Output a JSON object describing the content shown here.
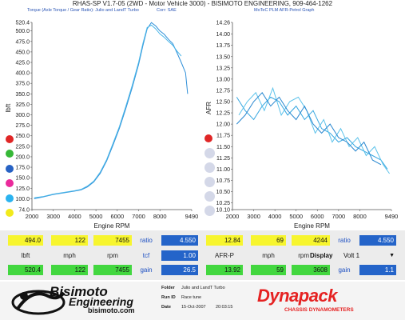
{
  "header": {
    "title": "RHAS-SP V1.7-05   (2WD - Motor Vehicle 3000) - BISIMOTO ENGINEERING, 909-464-1262"
  },
  "left_chart": {
    "title": "Torque (Axle Torque / Gear Ratio): Julio and LandT Turbo",
    "corr": "Corr: SAE"
  },
  "right_chart": {
    "title": "MoTeC PLM AFR-Petrol Graph"
  },
  "chart_data": [
    {
      "type": "line",
      "title": "Torque (Axle Torque / Gear Ratio): Julio and LandT Turbo",
      "xlabel": "Engine RPM",
      "ylabel": "lbft",
      "xlim": [
        2000,
        9490
      ],
      "ylim": [
        74.0,
        520.4
      ],
      "xticks": [
        "2000",
        "3000",
        "4000",
        "5000",
        "6000",
        "7000",
        "8000",
        "9490"
      ],
      "yticks": [
        "74.0",
        "100.0",
        "125.0",
        "150.0",
        "175.0",
        "200.0",
        "225.0",
        "250.0",
        "275.0",
        "300.0",
        "325.0",
        "350.0",
        "375.0",
        "400.0",
        "425.0",
        "450.0",
        "475.0",
        "500.0",
        "520.4"
      ],
      "series": [
        {
          "color": "#2f8fd8",
          "x": [
            2100,
            2500,
            3000,
            3500,
            4000,
            4300,
            4600,
            4900,
            5200,
            5500,
            5800,
            6100,
            6400,
            6700,
            7000,
            7200,
            7400,
            7600,
            7800,
            8000,
            8200,
            8400,
            8600,
            8800,
            9000,
            9200,
            9300
          ],
          "y": [
            100,
            104,
            110,
            114,
            118,
            121,
            128,
            140,
            160,
            190,
            228,
            268,
            315,
            365,
            420,
            465,
            505,
            520,
            512,
            500,
            492,
            480,
            470,
            448,
            425,
            400,
            350
          ]
        },
        {
          "color": "#48b6e8",
          "x": [
            2100,
            2500,
            3000,
            3500,
            4000,
            4300,
            4600,
            4900,
            5200,
            5500,
            5800,
            6100,
            6400,
            6700,
            7000,
            7200,
            7400,
            7600,
            7800,
            8000,
            8200,
            8400,
            8600,
            8800,
            9000
          ],
          "y": [
            102,
            105,
            111,
            115,
            119,
            122,
            130,
            142,
            163,
            193,
            232,
            272,
            320,
            370,
            425,
            470,
            508,
            514,
            505,
            493,
            485,
            475,
            466,
            452,
            440
          ]
        }
      ]
    },
    {
      "type": "line",
      "title": "MoTeC PLM AFR-Petrol Graph",
      "xlabel": "Engine RPM",
      "ylabel": "AFR",
      "xlim": [
        2000,
        9490
      ],
      "ylim": [
        10.1,
        14.26
      ],
      "xticks": [
        "2000",
        "3000",
        "4000",
        "5000",
        "6000",
        "7000",
        "8000",
        "9490"
      ],
      "yticks": [
        "10.10",
        "10.25",
        "10.50",
        "10.75",
        "11.00",
        "11.25",
        "11.50",
        "11.75",
        "12.00",
        "12.25",
        "12.50",
        "12.75",
        "13.00",
        "13.25",
        "13.50",
        "13.75",
        "14.00",
        "14.26"
      ],
      "series": [
        {
          "color": "#36a6e0",
          "x": [
            2200,
            2600,
            3000,
            3400,
            3800,
            4200,
            4600,
            5000,
            5400,
            5800,
            6200,
            6600,
            7000,
            7400,
            7800,
            8200,
            8600,
            9000,
            9300
          ],
          "y": [
            12.6,
            12.3,
            12.1,
            12.4,
            12.6,
            12.5,
            12.2,
            12.4,
            12.1,
            12.3,
            11.9,
            11.8,
            11.6,
            11.7,
            11.5,
            11.4,
            11.3,
            11.2,
            11.0
          ]
        },
        {
          "color": "#5cc2ea",
          "x": [
            2300,
            2700,
            3100,
            3500,
            3900,
            4300,
            4700,
            5100,
            5500,
            5900,
            6300,
            6700,
            7100,
            7500,
            7900,
            8300,
            8700,
            9100,
            9400
          ],
          "y": [
            12.2,
            12.5,
            12.7,
            12.3,
            12.8,
            12.2,
            12.5,
            12.6,
            12.3,
            11.8,
            12.1,
            11.6,
            11.9,
            11.5,
            11.7,
            11.3,
            11.5,
            11.1,
            10.9
          ]
        },
        {
          "color": "#2a88d0",
          "x": [
            2200,
            2600,
            3000,
            3400,
            3800,
            4200,
            4600,
            5000,
            5400,
            5800,
            6200,
            6600,
            7000,
            7400,
            7800,
            8200,
            8600,
            9000
          ],
          "y": [
            12.0,
            12.2,
            12.5,
            12.7,
            12.4,
            12.6,
            12.3,
            12.1,
            12.4,
            12.0,
            11.8,
            12.0,
            11.7,
            11.6,
            11.4,
            11.6,
            11.2,
            11.1
          ]
        }
      ]
    }
  ],
  "readouts": {
    "left_top": {
      "lbft": "494.0",
      "mph": "122",
      "rpm": "7455",
      "ratio_label": "ratio",
      "ratio": "4.550"
    },
    "left_labels": {
      "lbft": "lbft",
      "mph": "mph",
      "rpm": "rpm",
      "tcf_label": "tcf",
      "tcf": "1.00"
    },
    "left_bottom": {
      "lbft": "520.4",
      "mph": "122",
      "rpm": "7455",
      "gain_label": "gain",
      "gain": "26.5"
    },
    "right_top": {
      "afr": "12.84",
      "mph": "69",
      "rpm": "4244",
      "ratio_label": "ratio",
      "ratio": "4.550"
    },
    "right_labels": {
      "afr": "AFR-P",
      "mph": "mph",
      "rpm": "rpm",
      "display_label": "Display",
      "display_value": "Volt 1"
    },
    "right_bottom": {
      "afr": "13.92",
      "mph": "59",
      "rpm": "3608",
      "gain_label": "gain",
      "gain": "1.1"
    }
  },
  "footer": {
    "brand_line1": "Bisimoto",
    "brand_line2": "Engineering",
    "brand_url": "bisimoto.com",
    "folder_label": "Folder",
    "folder_value": "Julio and LandT Turbo",
    "run_label": "Run ID",
    "run_value": "Race tune",
    "date_label": "Date",
    "date_value": "15-Oct-2007",
    "time_value": "20:03:15",
    "dynapack": "Dynapack",
    "dynapack_sub": "CHASSIS DYNAMOMETERS"
  },
  "colors": {
    "yellow_cell": "#f7f52e",
    "green_cell": "#42d73f",
    "blue_cell": "#2464c9",
    "dynapack_red": "#e52222",
    "title_blue": "#2a55b5"
  },
  "series_buttons": [
    {
      "color": "#e02626"
    },
    {
      "color": "#36b837"
    },
    {
      "color": "#2762c4"
    },
    {
      "color": "#ea2a9b"
    },
    {
      "color": "#2bb3ef"
    },
    {
      "color": "#f2ea1c"
    }
  ]
}
